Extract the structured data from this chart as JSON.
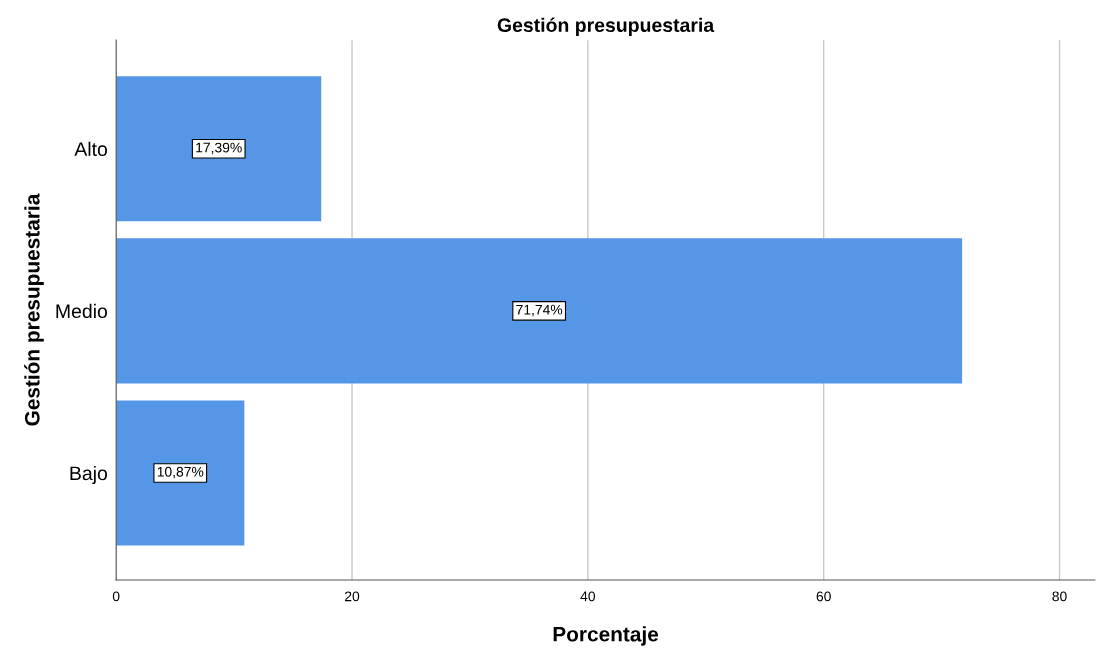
{
  "chart_data": {
    "type": "bar",
    "orientation": "horizontal",
    "title": "Gestión presupuestaria",
    "xlabel": "Porcentaje",
    "ylabel": "Gestión presupuestaria",
    "categories": [
      "Alto",
      "Medio",
      "Bajo"
    ],
    "values": [
      17.39,
      71.74,
      10.87
    ],
    "color": "#5596e6",
    "value_labels": [
      "17,39%",
      "71,74%",
      "10,87%"
    ],
    "xlim": [
      0,
      83
    ],
    "xticks": [
      0,
      20,
      40,
      60,
      80
    ],
    "grid": "x",
    "legend": false
  }
}
